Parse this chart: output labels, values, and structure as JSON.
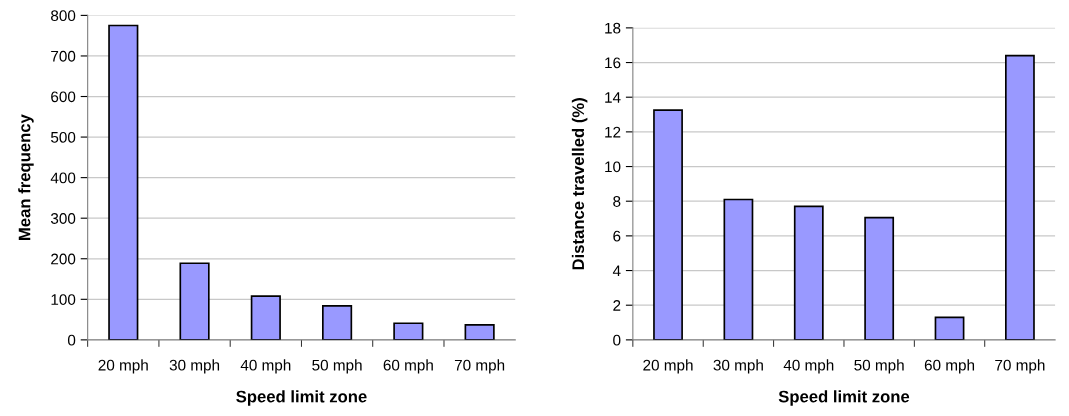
{
  "chart_data": [
    {
      "type": "bar",
      "xlabel": "Speed limit zone",
      "ylabel": "Mean frequency",
      "categories": [
        "20 mph",
        "30 mph",
        "40 mph",
        "50 mph",
        "60 mph",
        "70 mph"
      ],
      "values": [
        775,
        189,
        108,
        84,
        41,
        37
      ],
      "color": "#9999ff",
      "ylim": [
        0,
        800
      ],
      "yticks": [
        0,
        100,
        200,
        300,
        400,
        500,
        600,
        700,
        800
      ],
      "grid": "y",
      "legend": false
    },
    {
      "type": "bar",
      "xlabel": "Speed limit zone",
      "ylabel": "Distance travelled (%)",
      "categories": [
        "20 mph",
        "30 mph",
        "40 mph",
        "50 mph",
        "60 mph",
        "70 mph"
      ],
      "values": [
        13.25,
        8.1,
        7.7,
        7.05,
        1.3,
        16.4
      ],
      "color": "#9999ff",
      "ylim": [
        0,
        18
      ],
      "yticks": [
        0,
        2,
        4,
        6,
        8,
        10,
        12,
        14,
        16,
        18
      ],
      "grid": "y",
      "legend": false
    }
  ]
}
